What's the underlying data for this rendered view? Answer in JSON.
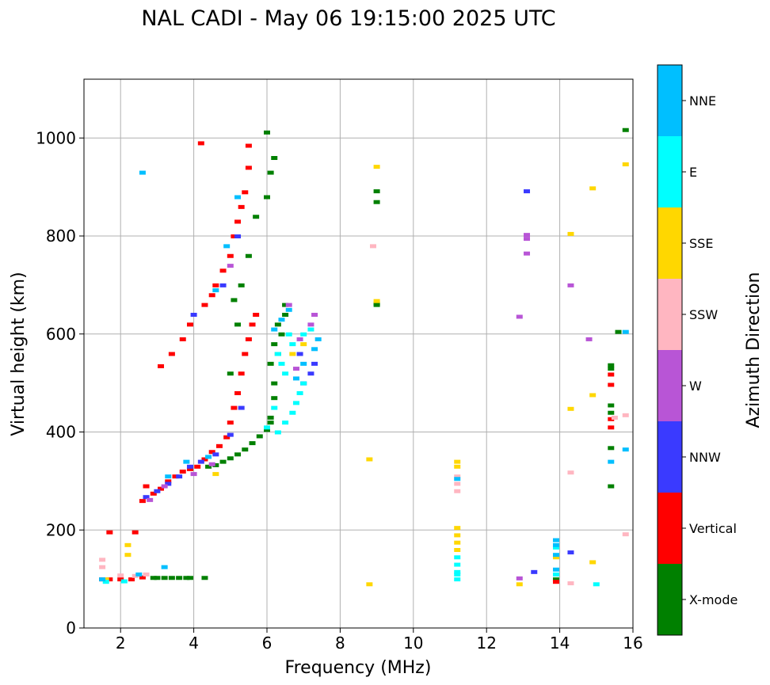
{
  "chart_data": {
    "type": "scatter",
    "title": "NAL CADI - May 06 19:15:00 2025 UTC",
    "xlabel": "Frequency (MHz)",
    "ylabel": "Virtual height (km)",
    "xlim": [
      1.0,
      16.0
    ],
    "ylim": [
      0,
      1120
    ],
    "xticks": [
      2,
      4,
      6,
      8,
      10,
      12,
      14,
      16
    ],
    "yticks": [
      0,
      200,
      400,
      600,
      800,
      1000
    ],
    "grid": true,
    "colorbar": {
      "label": "Azimuth Direction",
      "categories": [
        {
          "name": "X-mode",
          "color": "#008000"
        },
        {
          "name": "Vertical",
          "color": "#ff0000"
        },
        {
          "name": "NNW",
          "color": "#3a3aff"
        },
        {
          "name": "W",
          "color": "#b855d6"
        },
        {
          "name": "SSW",
          "color": "#ffb6c1"
        },
        {
          "name": "SSE",
          "color": "#ffd700"
        },
        {
          "name": "E",
          "color": "#00ffff"
        },
        {
          "name": "NNE",
          "color": "#00bfff"
        }
      ]
    },
    "series": [
      {
        "name": "X-mode",
        "color": "#008000",
        "points": [
          [
            3.0,
            103
          ],
          [
            3.2,
            103
          ],
          [
            3.4,
            103
          ],
          [
            3.6,
            103
          ],
          [
            3.8,
            103
          ],
          [
            3.9,
            103
          ],
          [
            4.3,
            103
          ],
          [
            2.9,
            103
          ],
          [
            4.4,
            330
          ],
          [
            4.6,
            333
          ],
          [
            4.8,
            340
          ],
          [
            5.0,
            347
          ],
          [
            5.2,
            355
          ],
          [
            5.4,
            365
          ],
          [
            5.6,
            378
          ],
          [
            5.8,
            392
          ],
          [
            6.0,
            405
          ],
          [
            6.1,
            420
          ],
          [
            6.1,
            430
          ],
          [
            6.2,
            470
          ],
          [
            6.2,
            500
          ],
          [
            6.1,
            540
          ],
          [
            6.3,
            560
          ],
          [
            6.2,
            580
          ],
          [
            6.4,
            600
          ],
          [
            6.3,
            620
          ],
          [
            6.5,
            640
          ],
          [
            6.5,
            660
          ],
          [
            5.0,
            520
          ],
          [
            5.2,
            620
          ],
          [
            5.1,
            670
          ],
          [
            5.3,
            700
          ],
          [
            5.5,
            760
          ],
          [
            5.7,
            840
          ],
          [
            6.0,
            880
          ],
          [
            6.1,
            930
          ],
          [
            6.2,
            960
          ],
          [
            6.0,
            1012
          ],
          [
            9.0,
            663
          ],
          [
            9.0,
            870
          ],
          [
            9.0,
            892
          ],
          [
            9.0,
            660
          ],
          [
            13.9,
            100
          ],
          [
            15.4,
            290
          ],
          [
            15.4,
            368
          ],
          [
            15.4,
            440
          ],
          [
            15.4,
            455
          ],
          [
            15.4,
            530
          ],
          [
            15.4,
            537
          ],
          [
            15.8,
            1017
          ],
          [
            15.6,
            605
          ]
        ]
      },
      {
        "name": "Vertical",
        "color": "#ff0000",
        "points": [
          [
            1.5,
            100
          ],
          [
            1.7,
            100
          ],
          [
            2.0,
            100
          ],
          [
            2.3,
            100
          ],
          [
            2.6,
            104
          ],
          [
            1.7,
            196
          ],
          [
            2.4,
            196
          ],
          [
            2.6,
            260
          ],
          [
            2.7,
            290
          ],
          [
            2.9,
            275
          ],
          [
            3.1,
            285
          ],
          [
            3.3,
            300
          ],
          [
            3.5,
            310
          ],
          [
            3.7,
            320
          ],
          [
            3.9,
            325
          ],
          [
            4.1,
            330
          ],
          [
            4.3,
            345
          ],
          [
            4.5,
            360
          ],
          [
            4.7,
            372
          ],
          [
            4.9,
            390
          ],
          [
            5.0,
            420
          ],
          [
            5.1,
            450
          ],
          [
            5.2,
            480
          ],
          [
            5.3,
            520
          ],
          [
            5.4,
            560
          ],
          [
            5.5,
            590
          ],
          [
            5.6,
            620
          ],
          [
            5.7,
            640
          ],
          [
            3.1,
            535
          ],
          [
            3.4,
            560
          ],
          [
            3.7,
            590
          ],
          [
            3.9,
            620
          ],
          [
            4.3,
            660
          ],
          [
            4.5,
            680
          ],
          [
            4.6,
            700
          ],
          [
            4.8,
            730
          ],
          [
            5.0,
            760
          ],
          [
            5.1,
            800
          ],
          [
            5.2,
            830
          ],
          [
            5.3,
            860
          ],
          [
            5.4,
            890
          ],
          [
            5.5,
            940
          ],
          [
            5.5,
            985
          ],
          [
            4.2,
            990
          ],
          [
            13.9,
            95
          ],
          [
            15.4,
            410
          ],
          [
            15.4,
            427
          ],
          [
            15.4,
            497
          ],
          [
            15.4,
            518
          ]
        ]
      },
      {
        "name": "NNW",
        "color": "#3a3aff",
        "points": [
          [
            2.7,
            268
          ],
          [
            3.0,
            280
          ],
          [
            3.3,
            295
          ],
          [
            3.6,
            310
          ],
          [
            3.9,
            330
          ],
          [
            4.2,
            340
          ],
          [
            4.6,
            355
          ],
          [
            5.0,
            395
          ],
          [
            5.3,
            450
          ],
          [
            7.0,
            500
          ],
          [
            7.2,
            520
          ],
          [
            7.3,
            540
          ],
          [
            6.9,
            560
          ],
          [
            4.0,
            640
          ],
          [
            4.8,
            700
          ],
          [
            5.2,
            800
          ],
          [
            13.1,
            892
          ],
          [
            13.3,
            115
          ],
          [
            14.3,
            155
          ]
        ]
      },
      {
        "name": "W",
        "color": "#b855d6",
        "points": [
          [
            2.8,
            262
          ],
          [
            3.2,
            290
          ],
          [
            4.0,
            315
          ],
          [
            4.5,
            335
          ],
          [
            6.6,
            660
          ],
          [
            6.9,
            590
          ],
          [
            7.2,
            620
          ],
          [
            7.3,
            640
          ],
          [
            6.8,
            530
          ],
          [
            5.0,
            740
          ],
          [
            12.9,
            636
          ],
          [
            12.9,
            102
          ],
          [
            13.1,
            765
          ],
          [
            13.1,
            795
          ],
          [
            13.1,
            803
          ],
          [
            14.3,
            700
          ],
          [
            14.8,
            590
          ]
        ]
      },
      {
        "name": "SSW",
        "color": "#ffb6c1",
        "points": [
          [
            1.5,
            140
          ],
          [
            1.5,
            125
          ],
          [
            2.0,
            108
          ],
          [
            2.4,
            107
          ],
          [
            2.7,
            110
          ],
          [
            11.2,
            280
          ],
          [
            11.2,
            295
          ],
          [
            11.2,
            310
          ],
          [
            8.9,
            780
          ],
          [
            14.3,
            318
          ],
          [
            14.3,
            92
          ],
          [
            15.5,
            430
          ],
          [
            15.8,
            435
          ],
          [
            15.8,
            192
          ]
        ]
      },
      {
        "name": "SSE",
        "color": "#ffd700",
        "points": [
          [
            1.6,
            100
          ],
          [
            2.2,
            170
          ],
          [
            2.2,
            150
          ],
          [
            4.6,
            315
          ],
          [
            6.7,
            560
          ],
          [
            7.0,
            580
          ],
          [
            8.8,
            345
          ],
          [
            8.8,
            90
          ],
          [
            9.0,
            668
          ],
          [
            9.0,
            942
          ],
          [
            11.2,
            205
          ],
          [
            11.2,
            190
          ],
          [
            11.2,
            175
          ],
          [
            11.2,
            160
          ],
          [
            11.2,
            330
          ],
          [
            11.2,
            340
          ],
          [
            12.9,
            90
          ],
          [
            13.9,
            145
          ],
          [
            14.3,
            448
          ],
          [
            14.3,
            805
          ],
          [
            14.9,
            898
          ],
          [
            14.9,
            476
          ],
          [
            14.9,
            135
          ],
          [
            15.8,
            947
          ]
        ]
      },
      {
        "name": "E",
        "color": "#00ffff",
        "points": [
          [
            1.6,
            95
          ],
          [
            2.1,
            96
          ],
          [
            6.0,
            410
          ],
          [
            6.3,
            400
          ],
          [
            6.5,
            420
          ],
          [
            6.7,
            440
          ],
          [
            6.8,
            460
          ],
          [
            6.9,
            480
          ],
          [
            7.0,
            500
          ],
          [
            6.5,
            520
          ],
          [
            6.4,
            540
          ],
          [
            6.3,
            560
          ],
          [
            6.7,
            580
          ],
          [
            7.0,
            600
          ],
          [
            7.2,
            610
          ],
          [
            6.6,
            600
          ],
          [
            6.2,
            450
          ],
          [
            11.2,
            100
          ],
          [
            11.2,
            115
          ],
          [
            11.2,
            130
          ],
          [
            11.2,
            145
          ],
          [
            11.2,
            110
          ],
          [
            13.9,
            110
          ],
          [
            13.9,
            165
          ],
          [
            15.0,
            90
          ]
        ]
      },
      {
        "name": "NNE",
        "color": "#00bfff",
        "points": [
          [
            1.5,
            100
          ],
          [
            2.5,
            110
          ],
          [
            3.2,
            125
          ],
          [
            2.6,
            930
          ],
          [
            3.3,
            310
          ],
          [
            3.8,
            340
          ],
          [
            4.4,
            350
          ],
          [
            4.6,
            690
          ],
          [
            4.9,
            780
          ],
          [
            5.2,
            880
          ],
          [
            6.2,
            610
          ],
          [
            6.4,
            630
          ],
          [
            6.6,
            650
          ],
          [
            7.0,
            540
          ],
          [
            7.3,
            570
          ],
          [
            7.4,
            590
          ],
          [
            6.8,
            510
          ],
          [
            11.2,
            305
          ],
          [
            13.9,
            120
          ],
          [
            13.9,
            150
          ],
          [
            13.9,
            170
          ],
          [
            13.9,
            180
          ],
          [
            15.4,
            340
          ],
          [
            15.8,
            605
          ],
          [
            15.8,
            365
          ]
        ]
      }
    ]
  }
}
